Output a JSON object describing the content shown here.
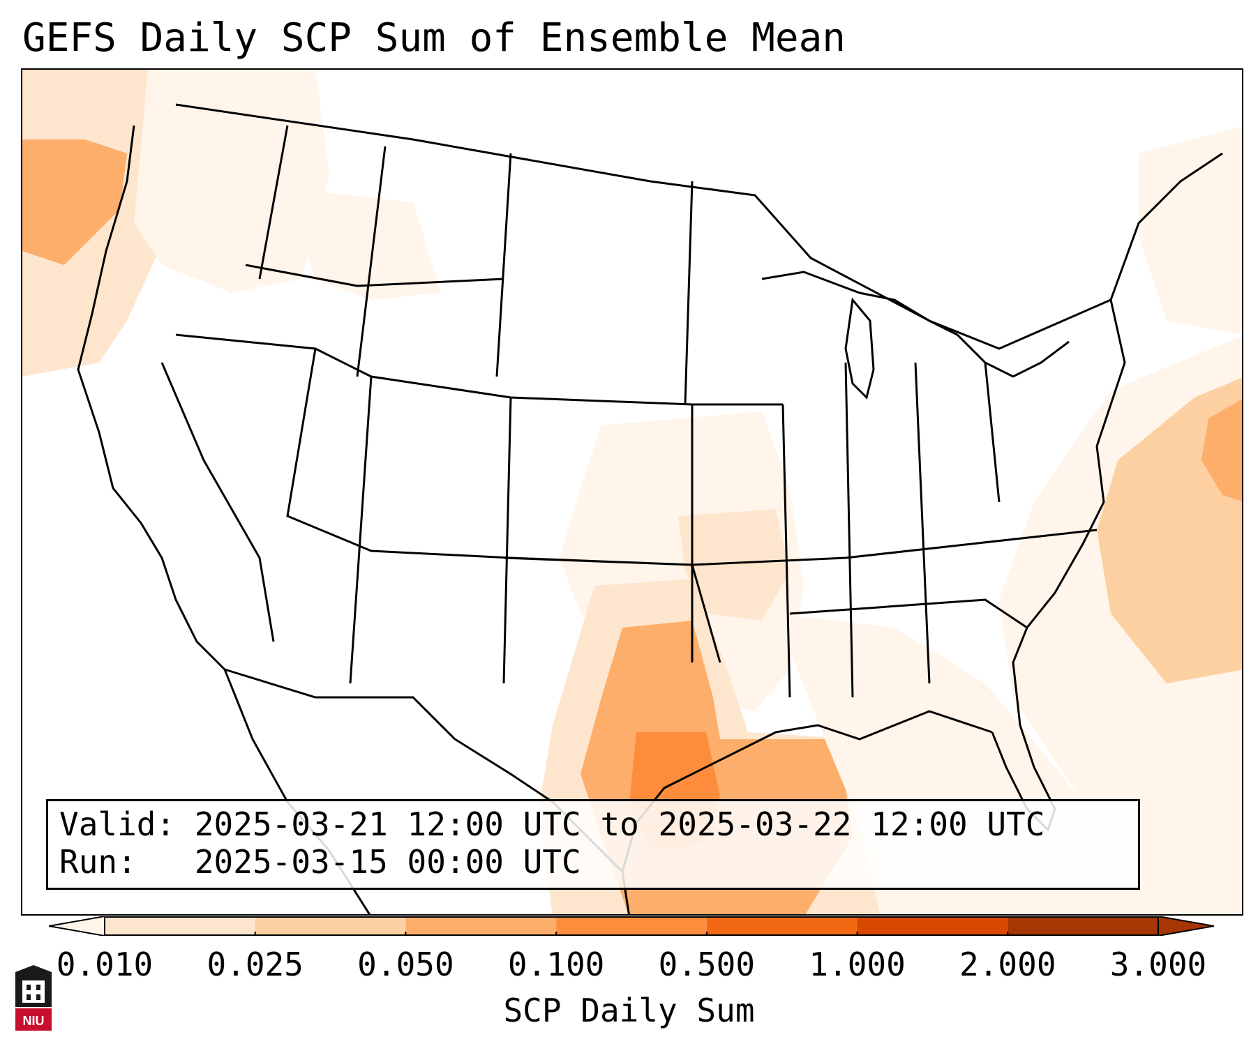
{
  "title": "GEFS Daily SCP Sum of Ensemble Mean",
  "info": {
    "valid_line": "Valid: 2025-03-21 12:00 UTC to 2025-03-22 12:00 UTC",
    "run_line": "Run:   2025-03-15 00:00 UTC"
  },
  "colorbar": {
    "label": "SCP Daily Sum",
    "ticks": [
      "0.010",
      "0.025",
      "0.050",
      "0.100",
      "0.500",
      "1.000",
      "2.000",
      "3.000"
    ],
    "colors": [
      "#fff5eb",
      "#fee6ce",
      "#fdd0a2",
      "#fdae6b",
      "#fd8d3c",
      "#f16913",
      "#d94801",
      "#a63603"
    ],
    "extend": "both"
  },
  "logo": {
    "text": "NIU",
    "color": "#c8102e"
  },
  "map_fields": [
    {
      "region": "Pacific Northwest coast",
      "level": "0.100"
    },
    {
      "region": "Southern Plains / Texas",
      "level": "0.100"
    },
    {
      "region": "Northwest Gulf of Mexico",
      "level": "0.500"
    },
    {
      "region": "Western Atlantic",
      "level": "0.100"
    },
    {
      "region": "Lower Mississippi Valley",
      "level": "0.025"
    }
  ]
}
